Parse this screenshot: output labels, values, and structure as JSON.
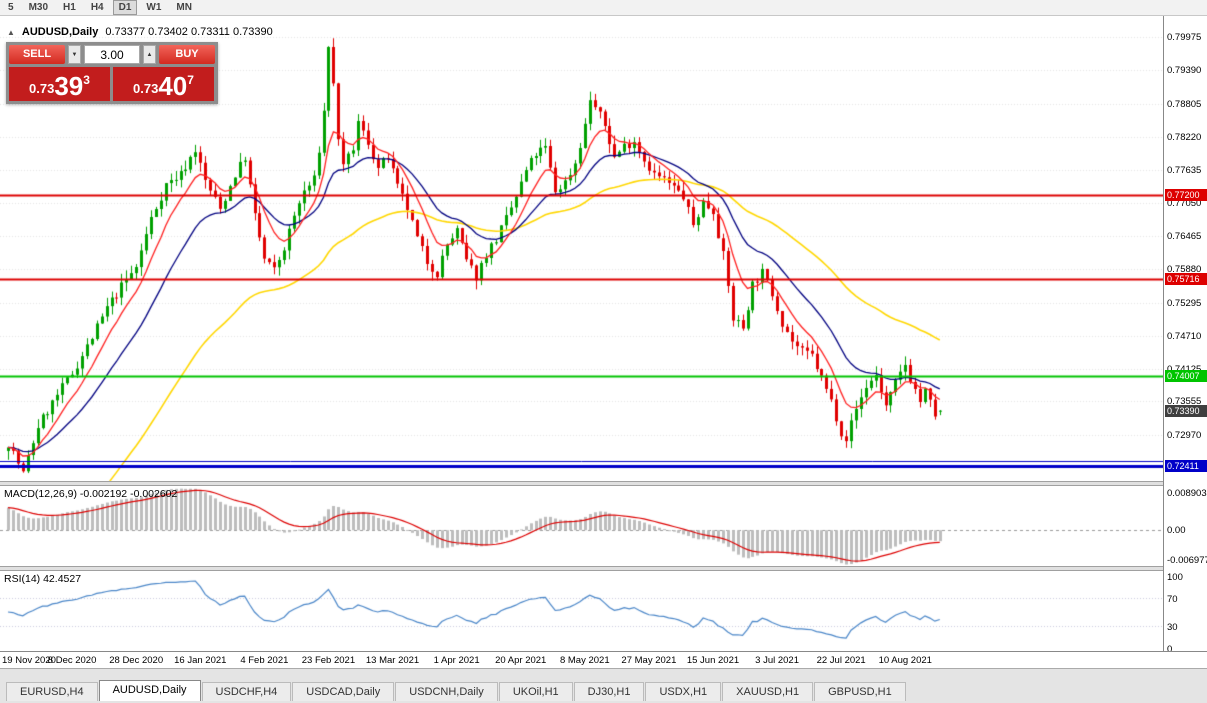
{
  "toolbar": {
    "timeframes": [
      {
        "label": "5",
        "active": false
      },
      {
        "label": "M30",
        "active": false
      },
      {
        "label": "H1",
        "active": false
      },
      {
        "label": "H4",
        "active": false
      },
      {
        "label": "D1",
        "active": true
      },
      {
        "label": "W1",
        "active": false
      },
      {
        "label": "MN",
        "active": false
      }
    ]
  },
  "chart": {
    "collapse_arrow": "▲",
    "title": "AUDUSD,Daily",
    "ohlc_text": "0.73377 0.73402 0.73311 0.73390",
    "trade_panel": {
      "sell_label": "SELL",
      "buy_label": "BUY",
      "volume": "3.00",
      "spin_down": "▼",
      "spin_up": "▲",
      "sell_price": {
        "prefix": "0.73",
        "big": "39",
        "sup": "3"
      },
      "buy_price": {
        "prefix": "0.73",
        "big": "40",
        "sup": "7"
      }
    },
    "scale": {
      "top": 0.8035,
      "bottom": 0.7215
    },
    "price_axis_labels": [
      "0.79975",
      "0.79390",
      "0.78805",
      "0.78220",
      "0.77635",
      "0.77050",
      "0.76465",
      "0.75880",
      "0.75295",
      "0.74710",
      "0.74125",
      "0.73555",
      "0.72970"
    ],
    "levels": [
      {
        "price": 0.772,
        "label": "0.77200",
        "color": "#dd0000"
      },
      {
        "price": 0.75716,
        "label": "0.75716",
        "color": "#dd0000"
      },
      {
        "price": 0.74007,
        "label": "0.74007",
        "color": "#00c400"
      },
      {
        "price": 0.72411,
        "label": "0.72411",
        "color": "#0000c8",
        "style": "double"
      }
    ],
    "current_price": {
      "value": 0.7339,
      "label": "0.73390",
      "box_color": "#3f3f3f"
    }
  },
  "macd": {
    "label": "MACD(12,26,9) -0.002192 -0.002602",
    "params": {
      "fast": 12,
      "slow": 26,
      "signal": 9
    },
    "range": {
      "top": 0.0105,
      "bottom": -0.0085
    },
    "axis": [
      {
        "label": "0.008903",
        "value": 0.008903
      },
      {
        "label": "0.00",
        "value": 0
      },
      {
        "label": "-0.006977",
        "value": -0.006977
      }
    ],
    "current": {
      "main": -0.002192,
      "signal": -0.002602
    }
  },
  "rsi": {
    "label": "RSI(14) 42.4527",
    "period": 14,
    "current": 42.4527,
    "axis": [
      100,
      70,
      30,
      0
    ],
    "levels": [
      70,
      30
    ]
  },
  "date_axis": {
    "ticks": [
      {
        "bar": 0,
        "label": "19 Nov 2020"
      },
      {
        "bar": 13,
        "label": "8 Dec 2020"
      },
      {
        "bar": 26,
        "label": "28 Dec 2020"
      },
      {
        "bar": 39,
        "label": "16 Jan 2021"
      },
      {
        "bar": 52,
        "label": "4 Feb 2021"
      },
      {
        "bar": 65,
        "label": "23 Feb 2021"
      },
      {
        "bar": 78,
        "label": "13 Mar 2021"
      },
      {
        "bar": 91,
        "label": "1 Apr 2021"
      },
      {
        "bar": 104,
        "label": "20 Apr 2021"
      },
      {
        "bar": 117,
        "label": "8 May 2021"
      },
      {
        "bar": 130,
        "label": "27 May 2021"
      },
      {
        "bar": 143,
        "label": "15 Jun 2021"
      },
      {
        "bar": 156,
        "label": "3 Jul 2021"
      },
      {
        "bar": 169,
        "label": "22 Jul 2021"
      },
      {
        "bar": 182,
        "label": "10 Aug 2021"
      }
    ]
  },
  "tabs": [
    {
      "label": "EURUSD,H4",
      "active": false
    },
    {
      "label": "AUDUSD,Daily",
      "active": true
    },
    {
      "label": "USDCHF,H4",
      "active": false
    },
    {
      "label": "USDCAD,Daily",
      "active": false
    },
    {
      "label": "USDCNH,Daily",
      "active": false
    },
    {
      "label": "UKOil,H1",
      "active": false
    },
    {
      "label": "DJ30,H1",
      "active": false
    },
    {
      "label": "USDX,H1",
      "active": false
    },
    {
      "label": "XAUUSD,H1",
      "active": false
    },
    {
      "label": "GBPUSD,H1",
      "active": false
    }
  ],
  "chart_data": {
    "type": "candlestick",
    "symbol": "AUDUSD",
    "timeframe": "Daily",
    "bars": 190,
    "last_bar": {
      "open": 0.73377,
      "high": 0.73402,
      "low": 0.73311,
      "close": 0.7339
    },
    "anchors": [
      [
        0,
        0.7283
      ],
      [
        3,
        0.7228
      ],
      [
        6,
        0.7312
      ],
      [
        10,
        0.7366
      ],
      [
        13,
        0.7405
      ],
      [
        17,
        0.7468
      ],
      [
        20,
        0.752
      ],
      [
        23,
        0.7558
      ],
      [
        26,
        0.7592
      ],
      [
        29,
        0.7678
      ],
      [
        32,
        0.7738
      ],
      [
        35,
        0.7756
      ],
      [
        38,
        0.78
      ],
      [
        40,
        0.7744
      ],
      [
        43,
        0.7694
      ],
      [
        46,
        0.7756
      ],
      [
        48,
        0.7786
      ],
      [
        50,
        0.7682
      ],
      [
        52,
        0.7606
      ],
      [
        54,
        0.7586
      ],
      [
        56,
        0.7626
      ],
      [
        58,
        0.7682
      ],
      [
        60,
        0.7726
      ],
      [
        62,
        0.7746
      ],
      [
        63,
        0.78
      ],
      [
        64,
        0.7866
      ],
      [
        65,
        0.7984
      ],
      [
        66,
        0.7912
      ],
      [
        67,
        0.7822
      ],
      [
        68,
        0.7766
      ],
      [
        70,
        0.7802
      ],
      [
        71,
        0.7846
      ],
      [
        73,
        0.7812
      ],
      [
        75,
        0.7766
      ],
      [
        77,
        0.7786
      ],
      [
        79,
        0.7732
      ],
      [
        81,
        0.7696
      ],
      [
        83,
        0.7642
      ],
      [
        85,
        0.7602
      ],
      [
        87,
        0.7582
      ],
      [
        89,
        0.7632
      ],
      [
        91,
        0.7656
      ],
      [
        93,
        0.7602
      ],
      [
        95,
        0.7576
      ],
      [
        97,
        0.7616
      ],
      [
        99,
        0.7642
      ],
      [
        101,
        0.7676
      ],
      [
        103,
        0.7716
      ],
      [
        105,
        0.7762
      ],
      [
        107,
        0.7792
      ],
      [
        109,
        0.7802
      ],
      [
        111,
        0.7726
      ],
      [
        113,
        0.7742
      ],
      [
        115,
        0.7776
      ],
      [
        117,
        0.7842
      ],
      [
        118,
        0.7888
      ],
      [
        119,
        0.7874
      ],
      [
        121,
        0.7842
      ],
      [
        123,
        0.7786
      ],
      [
        125,
        0.7806
      ],
      [
        127,
        0.7816
      ],
      [
        129,
        0.7782
      ],
      [
        131,
        0.7756
      ],
      [
        133,
        0.7746
      ],
      [
        135,
        0.7732
      ],
      [
        137,
        0.7716
      ],
      [
        139,
        0.7666
      ],
      [
        141,
        0.7706
      ],
      [
        143,
        0.7692
      ],
      [
        145,
        0.7612
      ],
      [
        147,
        0.7502
      ],
      [
        149,
        0.7486
      ],
      [
        151,
        0.7562
      ],
      [
        153,
        0.7582
      ],
      [
        155,
        0.7546
      ],
      [
        157,
        0.7496
      ],
      [
        159,
        0.7462
      ],
      [
        161,
        0.7442
      ],
      [
        163,
        0.7436
      ],
      [
        165,
        0.7396
      ],
      [
        167,
        0.7356
      ],
      [
        169,
        0.7302
      ],
      [
        170,
        0.7291
      ],
      [
        172,
        0.7342
      ],
      [
        174,
        0.7382
      ],
      [
        176,
        0.7402
      ],
      [
        178,
        0.7346
      ],
      [
        180,
        0.7386
      ],
      [
        182,
        0.7421
      ],
      [
        183,
        0.7396
      ],
      [
        185,
        0.7356
      ],
      [
        186,
        0.7372
      ],
      [
        188,
        0.7332
      ],
      [
        189,
        0.7339
      ]
    ],
    "candle_colors": {
      "up": "#00a000",
      "down": "#e00000"
    },
    "ma": [
      {
        "name": "fast-ma",
        "period": 8,
        "color": "#ff2020"
      },
      {
        "name": "medium-ma",
        "period": 20,
        "color": "#000080"
      },
      {
        "name": "slow-ma",
        "period": 55,
        "color": "#ffd700",
        "init": 0.7
      }
    ],
    "indicator_colors": {
      "macd_histogram": "#bdbdbd",
      "macd_signal": "#dd0000",
      "rsi_line": "#4a86c8",
      "grid": "#e4e4e4"
    }
  }
}
